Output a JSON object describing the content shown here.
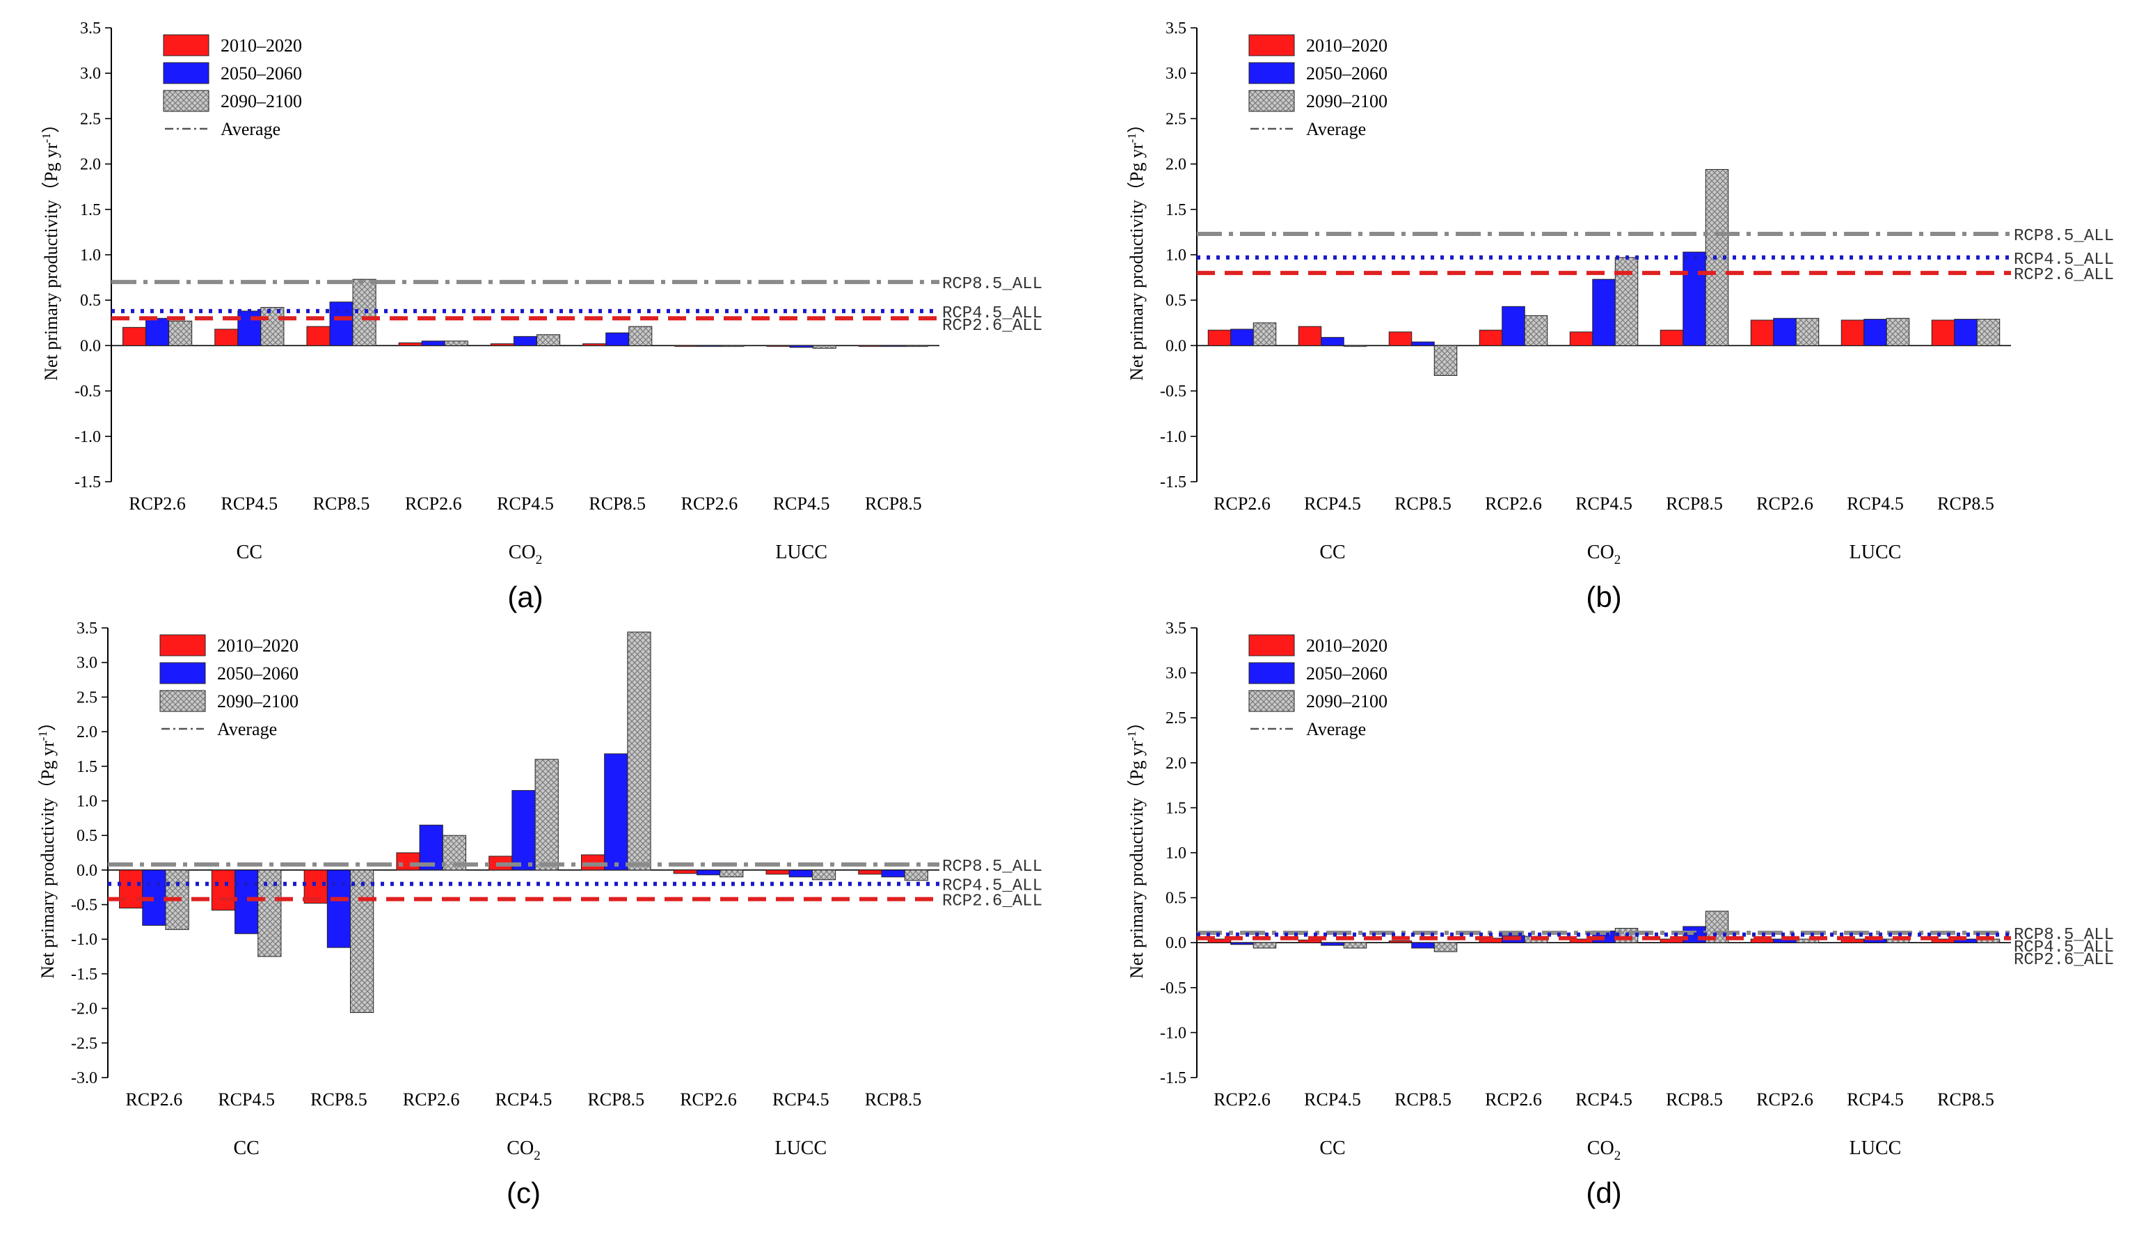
{
  "figure": {
    "panel_labels": [
      "(a)",
      "(b)",
      "(c)",
      "(d)"
    ]
  },
  "colors": {
    "s2010": "#ff1a1a",
    "s2050": "#1a1aff",
    "s2090": "#c0c0c0",
    "ref26": "#e02020",
    "ref45": "#1a1acc",
    "ref85": "#8a8a8a"
  },
  "chart_data": [
    {
      "panel": "(a)",
      "type": "bar",
      "ylabel": "Net primary productivity（Pg yr-1）",
      "ylabel_main": "Net primary productivity（Pg yr",
      "ylabel_sup": "-1",
      "ylabel_end": "）",
      "ylim": [
        -1.5,
        3.5
      ],
      "yticks": [
        "-1.5",
        "-1.0",
        "-0.5",
        "0.0",
        "0.5",
        "1.0",
        "1.5",
        "2.0",
        "2.5",
        "3.0",
        "3.5"
      ],
      "categories": [
        "RCP2.6",
        "RCP4.5",
        "RCP8.5",
        "RCP2.6",
        "RCP4.5",
        "RCP8.5",
        "RCP2.6",
        "RCP4.5",
        "RCP8.5"
      ],
      "groups": [
        {
          "label": "CC",
          "sub": ""
        },
        {
          "label": "CO",
          "sub": "2"
        },
        {
          "label": "LUCC",
          "sub": ""
        }
      ],
      "legend": {
        "s2010": "2010–2020",
        "s2050": "2050–2060",
        "s2090": "2090–2100",
        "avg": "Average"
      },
      "series": [
        {
          "name": "2010–2020",
          "values": [
            0.2,
            0.18,
            0.21,
            0.03,
            0.02,
            0.02,
            -0.01,
            -0.01,
            -0.01
          ]
        },
        {
          "name": "2050–2060",
          "values": [
            0.3,
            0.38,
            0.48,
            0.05,
            0.1,
            0.14,
            -0.01,
            -0.02,
            -0.01
          ]
        },
        {
          "name": "2090–2100",
          "values": [
            0.27,
            0.42,
            0.73,
            0.05,
            0.12,
            0.21,
            -0.01,
            -0.03,
            -0.01
          ]
        }
      ],
      "reference_lines": [
        {
          "label": "RCP8.5_ALL",
          "value": 0.7
        },
        {
          "label": "RCP4.5_ALL",
          "value": 0.38
        },
        {
          "label": "RCP2.6_ALL",
          "value": 0.3
        }
      ]
    },
    {
      "panel": "(b)",
      "type": "bar",
      "ylabel": "Net primary productivity（Pg yr-1）",
      "ylabel_main": "Net primary productivity（Pg yr",
      "ylabel_sup": "-1",
      "ylabel_end": "）",
      "ylim": [
        -1.5,
        3.5
      ],
      "yticks": [
        "-1.5",
        "-1.0",
        "-0.5",
        "0.0",
        "0.5",
        "1.0",
        "1.5",
        "2.0",
        "2.5",
        "3.0",
        "3.5"
      ],
      "categories": [
        "RCP2.6",
        "RCP4.5",
        "RCP8.5",
        "RCP2.6",
        "RCP4.5",
        "RCP8.5",
        "RCP2.6",
        "RCP4.5",
        "RCP8.5"
      ],
      "groups": [
        {
          "label": "CC",
          "sub": ""
        },
        {
          "label": "CO",
          "sub": "2"
        },
        {
          "label": "LUCC",
          "sub": ""
        }
      ],
      "legend": {
        "s2010": "2010–2020",
        "s2050": "2050–2060",
        "s2090": "2090–2100",
        "avg": "Average"
      },
      "series": [
        {
          "name": "2010–2020",
          "values": [
            0.17,
            0.21,
            0.15,
            0.17,
            0.15,
            0.17,
            0.28,
            0.28,
            0.28
          ]
        },
        {
          "name": "2050–2060",
          "values": [
            0.18,
            0.09,
            0.04,
            0.43,
            0.73,
            1.03,
            0.3,
            0.29,
            0.29
          ]
        },
        {
          "name": "2090–2100",
          "values": [
            0.25,
            -0.01,
            -0.33,
            0.33,
            0.97,
            1.94,
            0.3,
            0.3,
            0.29
          ]
        }
      ],
      "reference_lines": [
        {
          "label": "RCP8.5_ALL",
          "value": 1.23
        },
        {
          "label": "RCP4.5_ALL",
          "value": 0.97
        },
        {
          "label": "RCP2.6_ALL",
          "value": 0.8
        }
      ]
    },
    {
      "panel": "(c)",
      "type": "bar",
      "ylabel": "Net primary productivity（Pg yr-1）",
      "ylabel_main": "Net primary productivity（Pg yr",
      "ylabel_sup": "-1",
      "ylabel_end": "）",
      "ylim": [
        -3.0,
        3.5
      ],
      "yticks": [
        "-3.0",
        "-2.5",
        "-2.0",
        "-1.5",
        "-1.0",
        "-0.5",
        "0.0",
        "0.5",
        "1.0",
        "1.5",
        "2.0",
        "2.5",
        "3.0",
        "3.5"
      ],
      "categories": [
        "RCP2.6",
        "RCP4.5",
        "RCP8.5",
        "RCP2.6",
        "RCP4.5",
        "RCP8.5",
        "RCP2.6",
        "RCP4.5",
        "RCP8.5"
      ],
      "groups": [
        {
          "label": "CC",
          "sub": ""
        },
        {
          "label": "CO",
          "sub": "2"
        },
        {
          "label": "LUCC",
          "sub": ""
        }
      ],
      "legend": {
        "s2010": "2010–2020",
        "s2050": "2050–2060",
        "s2090": "2090–2100",
        "avg": "Average"
      },
      "series": [
        {
          "name": "2010–2020",
          "values": [
            -0.55,
            -0.58,
            -0.48,
            0.25,
            0.2,
            0.22,
            -0.05,
            -0.06,
            -0.06
          ]
        },
        {
          "name": "2050–2060",
          "values": [
            -0.8,
            -0.92,
            -1.12,
            0.65,
            1.15,
            1.68,
            -0.07,
            -0.1,
            -0.1
          ]
        },
        {
          "name": "2090–2100",
          "values": [
            -0.86,
            -1.25,
            -2.06,
            0.5,
            1.6,
            3.44,
            -0.1,
            -0.14,
            -0.15
          ]
        }
      ],
      "reference_lines": [
        {
          "label": "RCP8.5_ALL",
          "value": 0.08
        },
        {
          "label": "RCP4.5_ALL",
          "value": -0.2
        },
        {
          "label": "RCP2.6_ALL",
          "value": -0.42
        }
      ]
    },
    {
      "panel": "(d)",
      "type": "bar",
      "ylabel": "Net primary productivity（Pg yr-1）",
      "ylabel_main": "Net primary productivity（Pg yr",
      "ylabel_sup": "-1",
      "ylabel_end": "）",
      "ylim": [
        -1.5,
        3.5
      ],
      "yticks": [
        "-1.5",
        "-1.0",
        "-0.5",
        "0.0",
        "0.5",
        "1.0",
        "1.5",
        "2.0",
        "2.5",
        "3.0",
        "3.5"
      ],
      "categories": [
        "RCP2.6",
        "RCP4.5",
        "RCP8.5",
        "RCP2.6",
        "RCP4.5",
        "RCP8.5",
        "RCP2.6",
        "RCP4.5",
        "RCP8.5"
      ],
      "groups": [
        {
          "label": "CC",
          "sub": ""
        },
        {
          "label": "CO",
          "sub": "2"
        },
        {
          "label": "LUCC",
          "sub": ""
        }
      ],
      "legend": {
        "s2010": "2010–2020",
        "s2050": "2050–2060",
        "s2090": "2090–2100",
        "avg": "Average"
      },
      "series": [
        {
          "name": "2010–2020",
          "values": [
            0.04,
            0.03,
            0.02,
            0.05,
            0.04,
            0.04,
            0.04,
            0.04,
            0.04
          ]
        },
        {
          "name": "2050–2060",
          "values": [
            -0.02,
            -0.03,
            -0.06,
            0.08,
            0.13,
            0.18,
            0.04,
            0.04,
            0.04
          ]
        },
        {
          "name": "2090–2100",
          "values": [
            -0.06,
            -0.06,
            -0.1,
            0.07,
            0.16,
            0.35,
            0.04,
            0.04,
            0.04
          ]
        }
      ],
      "reference_lines": [
        {
          "label": "RCP8.5_ALL",
          "value": 0.11
        },
        {
          "label": "RCP4.5_ALL",
          "value": 0.09
        },
        {
          "label": "RCP2.6_ALL",
          "value": 0.05
        }
      ]
    }
  ]
}
